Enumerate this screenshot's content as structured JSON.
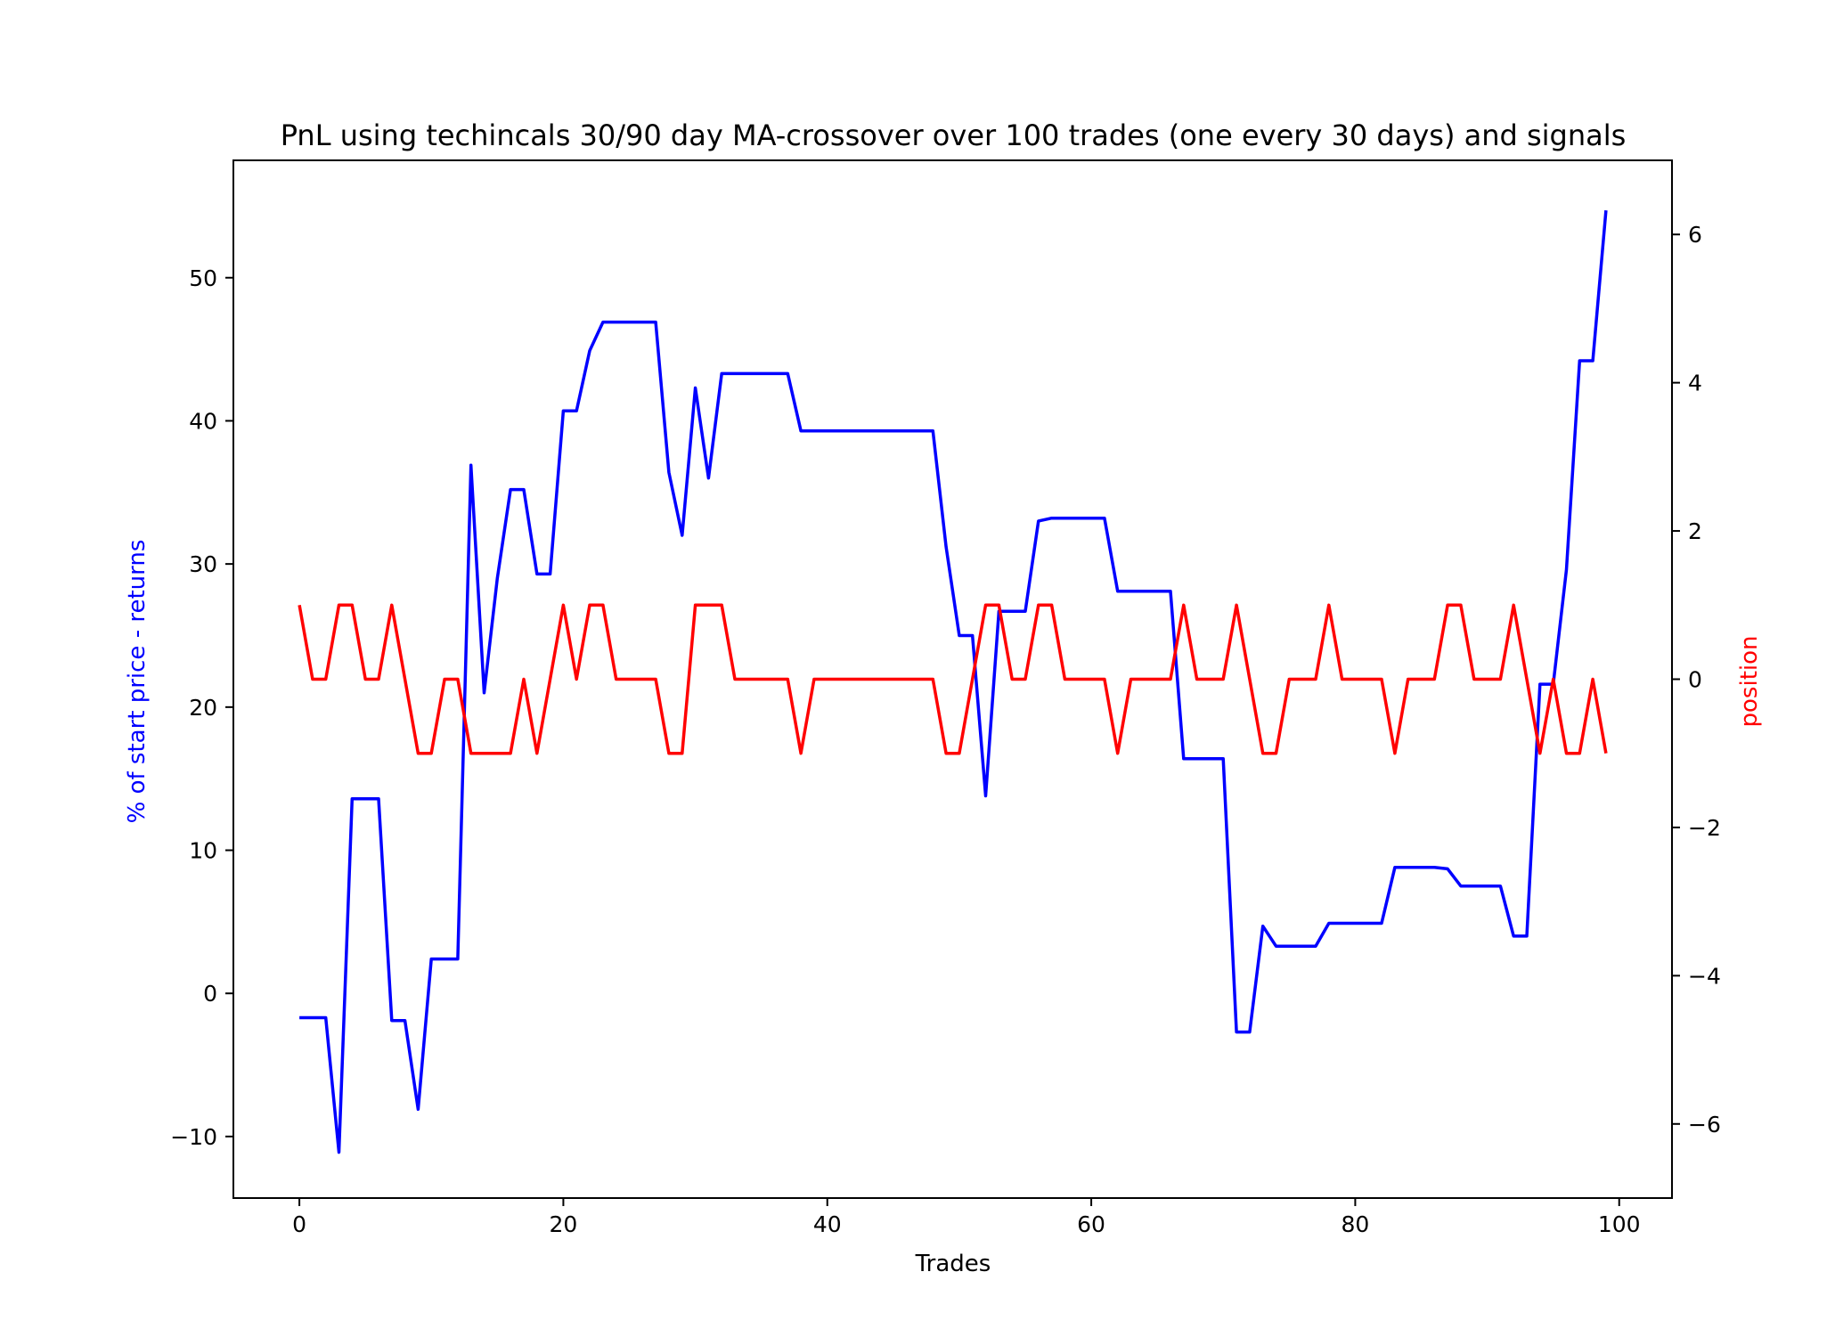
{
  "chart_data": {
    "type": "line",
    "title": "PnL using techincals 30/90 day MA-crossover over 100 trades (one every 30 days) and signals",
    "xlabel": "Trades",
    "ylabel": "% of start price - returns",
    "y2label": "position",
    "xlim": [
      -5,
      104
    ],
    "ylim": [
      -14.3,
      58.2
    ],
    "y2lim": [
      -7.0,
      7.0
    ],
    "xticks": [
      "0",
      "20",
      "40",
      "60",
      "80",
      "100"
    ],
    "yticks": [
      "−10",
      "0",
      "10",
      "20",
      "30",
      "40",
      "50"
    ],
    "y2ticks": [
      "−6",
      "−4",
      "−2",
      "0",
      "2",
      "4",
      "6"
    ],
    "grid": false,
    "colors": {
      "returns": "#0000ff",
      "position": "#ff0000",
      "axis": "#000000"
    },
    "x": [
      0,
      1,
      2,
      3,
      4,
      5,
      6,
      7,
      8,
      9,
      10,
      11,
      12,
      13,
      14,
      15,
      16,
      17,
      18,
      19,
      20,
      21,
      22,
      23,
      24,
      25,
      26,
      27,
      28,
      29,
      30,
      31,
      32,
      33,
      34,
      35,
      36,
      37,
      38,
      39,
      40,
      41,
      42,
      43,
      44,
      45,
      46,
      47,
      48,
      49,
      50,
      51,
      52,
      53,
      54,
      55,
      56,
      57,
      58,
      59,
      60,
      61,
      62,
      63,
      64,
      65,
      66,
      67,
      68,
      69,
      70,
      71,
      72,
      73,
      74,
      75,
      76,
      77,
      78,
      79,
      80,
      81,
      82,
      83,
      84,
      85,
      86,
      87,
      88,
      89,
      90,
      91,
      92,
      93,
      94,
      95,
      96,
      97,
      98,
      99
    ],
    "series": [
      {
        "axis": "left",
        "color": "#0000ff",
        "values": [
          -1.7,
          -1.7,
          -1.7,
          -11.1,
          13.6,
          13.6,
          13.6,
          -1.9,
          -1.9,
          -8.1,
          2.4,
          2.4,
          2.4,
          36.9,
          21.0,
          29.0,
          35.2,
          35.2,
          29.3,
          29.3,
          40.7,
          40.7,
          44.9,
          46.9,
          46.9,
          46.9,
          46.9,
          46.9,
          36.4,
          32.0,
          42.3,
          36.0,
          43.3,
          43.3,
          43.3,
          43.3,
          43.3,
          43.3,
          39.3,
          39.3,
          39.3,
          39.3,
          39.3,
          39.3,
          39.3,
          39.3,
          39.3,
          39.3,
          39.3,
          31.2,
          25.0,
          25.0,
          13.8,
          26.7,
          26.7,
          26.7,
          33.0,
          33.2,
          33.2,
          33.2,
          33.2,
          33.2,
          28.1,
          28.1,
          28.1,
          28.1,
          28.1,
          16.4,
          16.4,
          16.4,
          16.4,
          -2.7,
          -2.7,
          4.7,
          3.3,
          3.3,
          3.3,
          3.3,
          4.9,
          4.9,
          4.9,
          4.9,
          4.9,
          8.8,
          8.8,
          8.8,
          8.8,
          8.7,
          7.5,
          7.5,
          7.5,
          7.5,
          4.0,
          4.0,
          21.6,
          21.6,
          29.6,
          44.2,
          44.2,
          54.7
        ]
      },
      {
        "axis": "right",
        "color": "#ff0000",
        "values": [
          1,
          0,
          0,
          1,
          1,
          0,
          0,
          1,
          0,
          -1,
          -1,
          0,
          0,
          -1,
          -1,
          -1,
          -1,
          0,
          -1,
          0,
          1,
          0,
          1,
          1,
          0,
          0,
          0,
          0,
          -1,
          -1,
          1,
          1,
          1,
          0,
          0,
          0,
          0,
          0,
          -1,
          0,
          0,
          0,
          0,
          0,
          0,
          0,
          0,
          0,
          0,
          -1,
          -1,
          0,
          1,
          1,
          0,
          0,
          1,
          1,
          0,
          0,
          0,
          0,
          -1,
          0,
          0,
          0,
          0,
          1,
          0,
          0,
          0,
          1,
          0,
          -1,
          -1,
          0,
          0,
          0,
          1,
          0,
          0,
          0,
          0,
          -1,
          0,
          0,
          0,
          1,
          1,
          0,
          0,
          0,
          1,
          0,
          -1,
          0,
          -1,
          -1,
          0,
          -1
        ]
      }
    ]
  }
}
